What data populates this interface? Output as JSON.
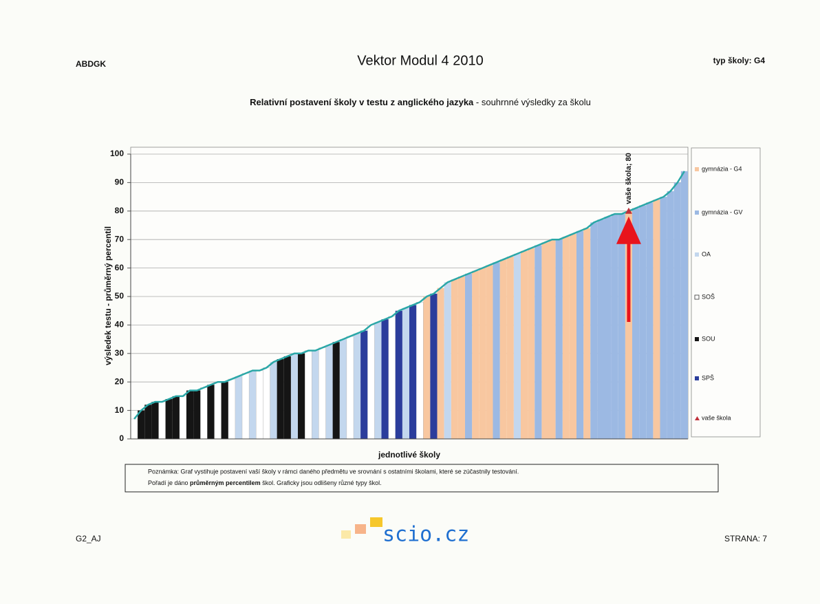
{
  "header": {
    "left": "ABDGK",
    "title": "Vektor Modul 4 2010",
    "right": "typ školy: G4"
  },
  "chart_data": {
    "type": "bar",
    "title": "Relativní postavení školy v testu z anglického jazyka",
    "subtitle": "- souhrnné výsledky za školu",
    "y_label": "výsledek testu - průměrný percentil",
    "x_label": "jednotlivé školy",
    "ylim": [
      0,
      100
    ],
    "yticks": [
      0,
      10,
      20,
      30,
      40,
      50,
      60,
      70,
      80,
      90,
      100
    ],
    "grid": true,
    "legend": "right",
    "line_color": "#2aa7a7",
    "series": [
      {
        "name": "gymnázia - G4",
        "color": "#f8c7a0",
        "values": [
          null,
          null,
          null,
          null,
          null,
          null,
          null,
          null,
          null,
          null,
          null,
          null,
          null,
          null,
          null,
          null,
          null,
          null,
          null,
          null,
          null,
          null,
          null,
          null,
          null,
          null,
          null,
          null,
          null,
          null,
          null,
          null,
          null,
          null,
          null,
          null,
          null,
          null,
          null,
          null,
          null,
          null,
          50,
          null,
          53,
          null,
          56,
          57,
          null,
          59,
          60,
          61,
          null,
          63,
          64,
          null,
          66,
          67,
          null,
          69,
          70,
          null,
          71,
          72,
          null,
          74,
          null,
          null,
          null,
          null,
          null,
          80,
          null,
          null,
          null,
          84,
          null,
          null,
          null,
          null
        ]
      },
      {
        "name": "gymnázia - GV",
        "color": "#9cb9e3",
        "values": [
          null,
          null,
          null,
          null,
          null,
          null,
          null,
          null,
          null,
          null,
          null,
          null,
          null,
          null,
          null,
          null,
          null,
          null,
          null,
          null,
          null,
          null,
          null,
          null,
          null,
          null,
          null,
          null,
          null,
          null,
          null,
          null,
          null,
          null,
          null,
          null,
          null,
          null,
          null,
          null,
          null,
          null,
          null,
          null,
          null,
          null,
          null,
          null,
          58,
          null,
          null,
          null,
          62,
          null,
          null,
          null,
          null,
          null,
          68,
          null,
          null,
          70,
          null,
          null,
          73,
          null,
          76,
          77,
          78,
          79,
          79,
          null,
          81,
          82,
          83,
          null,
          85,
          87,
          90,
          94
        ]
      },
      {
        "name": "OA",
        "color": "#c3d7ee",
        "values": [
          null,
          null,
          null,
          null,
          null,
          null,
          null,
          null,
          null,
          null,
          null,
          null,
          null,
          null,
          null,
          22,
          null,
          24,
          null,
          null,
          27,
          null,
          null,
          30,
          null,
          null,
          31,
          null,
          33,
          null,
          35,
          null,
          37,
          null,
          null,
          41,
          null,
          null,
          null,
          46,
          null,
          null,
          null,
          null,
          null,
          55,
          null,
          null,
          null,
          null,
          null,
          null,
          null,
          null,
          null,
          65,
          null,
          null,
          null,
          null,
          null,
          null,
          null,
          null,
          null,
          null,
          null,
          null,
          null,
          null,
          null,
          null,
          null,
          null,
          null,
          null,
          null,
          null,
          null,
          null
        ]
      },
      {
        "name": "SOŠ",
        "color": "#ffffff",
        "values": [
          7,
          null,
          null,
          null,
          13,
          null,
          null,
          15,
          null,
          null,
          18,
          null,
          20,
          null,
          21,
          null,
          23,
          null,
          24,
          25,
          null,
          null,
          null,
          null,
          null,
          31,
          null,
          32,
          null,
          null,
          null,
          36,
          null,
          null,
          40,
          null,
          null,
          43,
          null,
          null,
          null,
          48,
          null,
          null,
          null,
          null,
          null,
          null,
          null,
          null,
          null,
          null,
          null,
          null,
          null,
          null,
          null,
          null,
          null,
          null,
          null,
          null,
          null,
          null,
          null,
          null,
          null,
          null,
          null,
          null,
          null,
          null,
          null,
          null,
          null,
          null,
          null,
          null,
          null,
          null
        ]
      },
      {
        "name": "SOU",
        "color": "#151515",
        "values": [
          null,
          10,
          12,
          13,
          null,
          14,
          15,
          null,
          17,
          17,
          null,
          19,
          null,
          20,
          null,
          null,
          null,
          null,
          null,
          null,
          null,
          28,
          29,
          null,
          30,
          null,
          null,
          null,
          null,
          34,
          null,
          null,
          null,
          null,
          null,
          null,
          null,
          null,
          null,
          null,
          null,
          null,
          null,
          null,
          null,
          null,
          null,
          null,
          null,
          null,
          null,
          null,
          null,
          null,
          null,
          null,
          null,
          null,
          null,
          null,
          null,
          null,
          null,
          null,
          null,
          null,
          null,
          null,
          null,
          null,
          null,
          null,
          null,
          null,
          null,
          null,
          null,
          null,
          null,
          null
        ]
      },
      {
        "name": "SPŠ",
        "color": "#2b3d9c",
        "values": [
          null,
          null,
          null,
          null,
          null,
          null,
          null,
          null,
          null,
          null,
          null,
          null,
          null,
          null,
          null,
          null,
          null,
          null,
          null,
          null,
          null,
          null,
          null,
          null,
          null,
          null,
          null,
          null,
          null,
          null,
          null,
          null,
          null,
          38,
          null,
          null,
          42,
          null,
          45,
          null,
          47,
          null,
          null,
          51,
          null,
          null,
          null,
          null,
          null,
          null,
          null,
          null,
          null,
          null,
          null,
          null,
          null,
          null,
          null,
          null,
          null,
          null,
          null,
          null,
          null,
          null,
          null,
          null,
          null,
          null,
          null,
          null,
          null,
          null,
          null,
          null,
          null,
          null,
          null,
          null
        ]
      },
      {
        "name": "vaše škola",
        "color": "#c0303a",
        "marker": "triangle",
        "values": [
          null,
          null,
          null,
          null,
          null,
          null,
          null,
          null,
          null,
          null,
          null,
          null,
          null,
          null,
          null,
          null,
          null,
          null,
          null,
          null,
          null,
          null,
          null,
          null,
          null,
          null,
          null,
          null,
          null,
          null,
          null,
          null,
          null,
          null,
          null,
          null,
          null,
          null,
          null,
          null,
          null,
          null,
          null,
          null,
          null,
          null,
          null,
          null,
          null,
          null,
          null,
          null,
          null,
          null,
          null,
          null,
          null,
          null,
          null,
          null,
          null,
          null,
          null,
          null,
          null,
          null,
          null,
          null,
          null,
          null,
          null,
          80,
          null,
          null,
          null,
          null,
          null,
          null,
          null,
          null
        ],
        "value_labels": [
          null,
          null,
          null,
          null,
          null,
          null,
          null,
          null,
          null,
          null,
          null,
          null,
          null,
          null,
          null,
          null,
          null,
          null,
          null,
          null,
          null,
          null,
          null,
          null,
          null,
          null,
          null,
          null,
          null,
          null,
          null,
          null,
          null,
          null,
          null,
          null,
          null,
          null,
          null,
          null,
          null,
          null,
          null,
          null,
          null,
          null,
          null,
          null,
          null,
          null,
          null,
          null,
          null,
          null,
          null,
          null,
          null,
          null,
          null,
          null,
          null,
          null,
          null,
          null,
          null,
          null,
          null,
          null,
          null,
          null,
          null,
          "vaše škola; 80",
          null,
          null,
          null,
          null,
          null,
          null,
          null,
          null
        ]
      }
    ]
  },
  "note": {
    "line1": "Poznámka: Graf vystihuje postavení vaší školy v rámci daného předmětu ve srovnání s ostatními školami, které se zúčastnily testování.",
    "line2_start": "Pořadí je dáno ",
    "line2_bold": "průměrným percentilem",
    "line2_end": " škol. Graficky jsou odlišeny různé typy škol."
  },
  "footer": {
    "left": "G2_AJ",
    "logo": "scio.cz",
    "right": "STRANA: 7"
  }
}
